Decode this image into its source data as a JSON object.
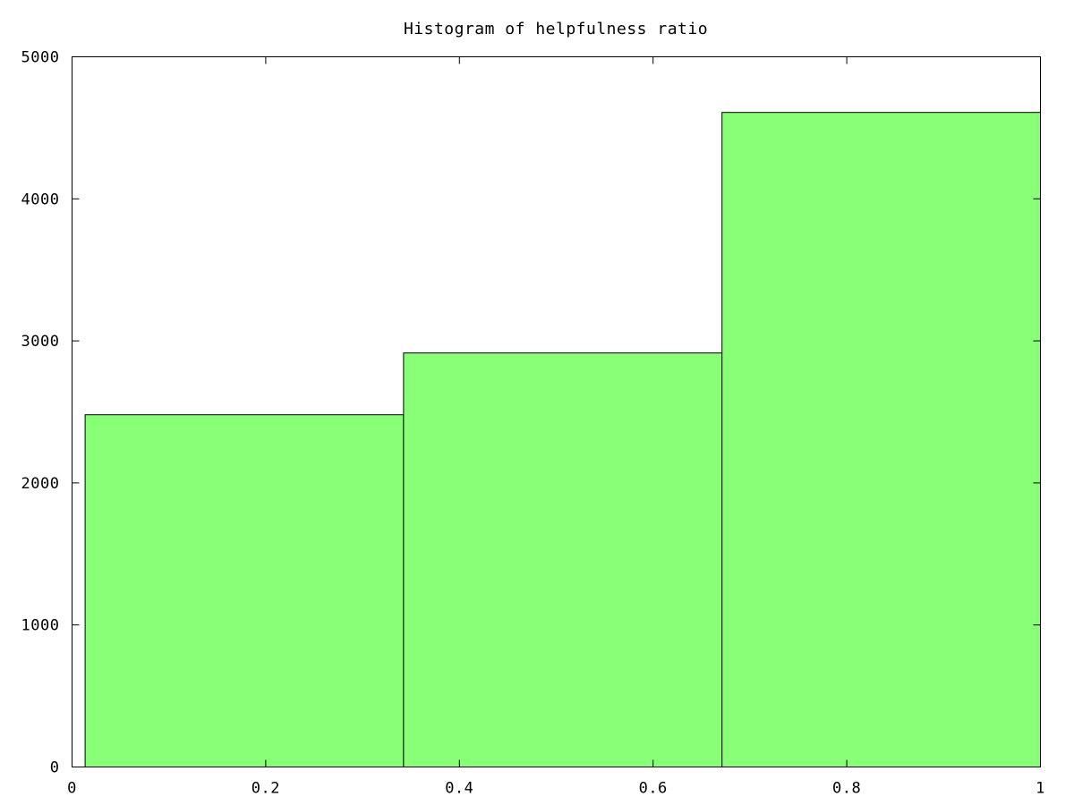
{
  "chart_data": {
    "type": "bar",
    "title": "Histogram of helpfulness ratio",
    "xlabel": "",
    "ylabel": "",
    "xlim": [
      0,
      1
    ],
    "ylim": [
      0,
      5000
    ],
    "grid": false,
    "bin_edges": [
      0.0135,
      0.3423,
      0.6712,
      1.0
    ],
    "values": [
      2480,
      2915,
      4608
    ],
    "bar_color": "#88ff77",
    "edge_color": "#000000",
    "x_ticks": [
      {
        "value": 0,
        "label": "0"
      },
      {
        "value": 0.2,
        "label": "0.2"
      },
      {
        "value": 0.4,
        "label": "0.4"
      },
      {
        "value": 0.6,
        "label": "0.6"
      },
      {
        "value": 0.8,
        "label": "0.8"
      },
      {
        "value": 1,
        "label": "1"
      }
    ],
    "y_ticks": [
      {
        "value": 0,
        "label": "0"
      },
      {
        "value": 1000,
        "label": "1000"
      },
      {
        "value": 2000,
        "label": "2000"
      },
      {
        "value": 3000,
        "label": "3000"
      },
      {
        "value": 4000,
        "label": "4000"
      },
      {
        "value": 5000,
        "label": "5000"
      }
    ]
  }
}
